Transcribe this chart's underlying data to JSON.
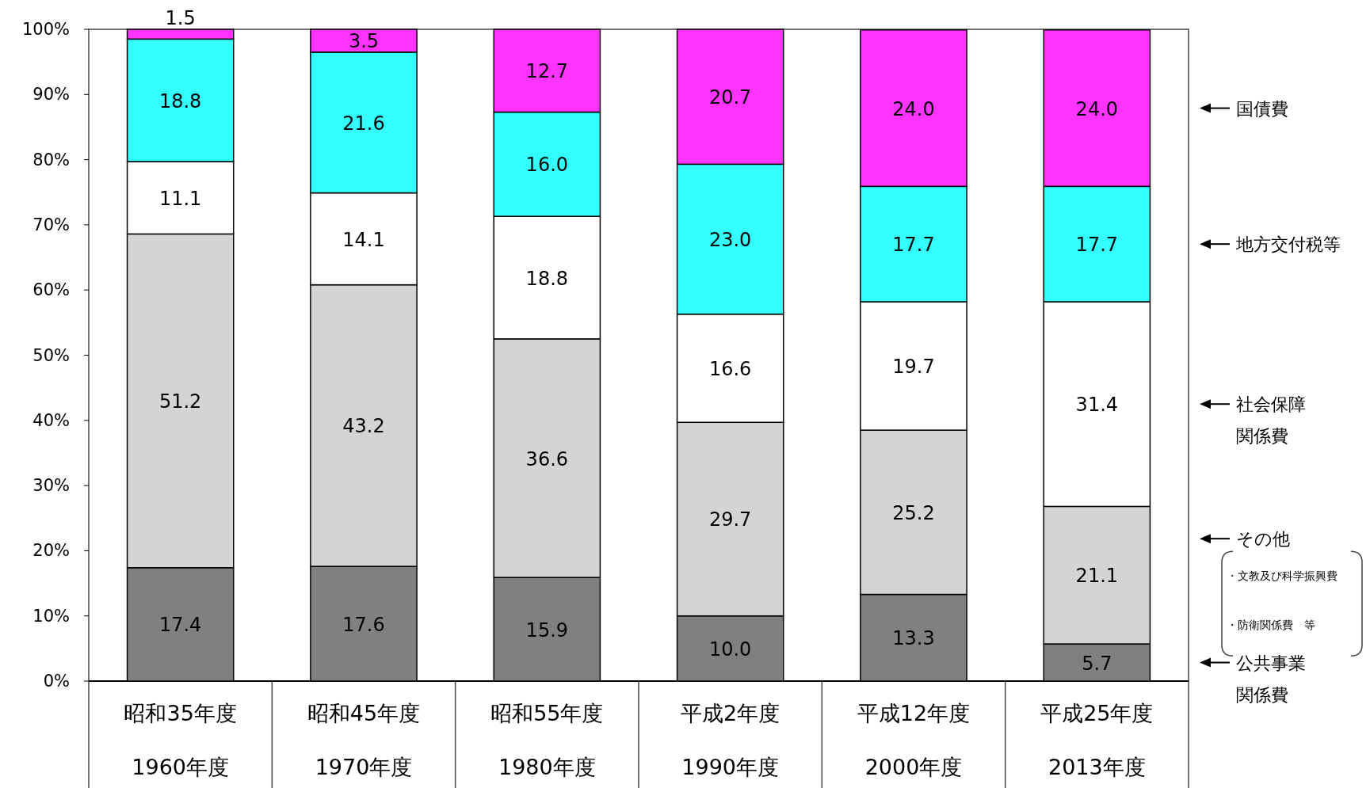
{
  "chart_data": {
    "type": "bar",
    "stacked": true,
    "legend": "right",
    "grid": false,
    "categories": [
      "昭和35年度\n1960年度",
      "昭和45年度\n1970年度",
      "昭和55年度\n1980年度",
      "平成2年度\n1990年度",
      "平成12年度\n2000年度",
      "平成25年度\n2013年度"
    ],
    "ylim": [
      0,
      100
    ],
    "yticks": [
      {
        "value": 0,
        "label": "0%"
      },
      {
        "value": 10,
        "label": "10%"
      },
      {
        "value": 20,
        "label": "20%"
      },
      {
        "value": 30,
        "label": "30%"
      },
      {
        "value": 40,
        "label": "40%"
      },
      {
        "value": 50,
        "label": "50%"
      },
      {
        "value": 60,
        "label": "60%"
      },
      {
        "value": 70,
        "label": "70%"
      },
      {
        "value": 80,
        "label": "80%"
      },
      {
        "value": 90,
        "label": "90%"
      },
      {
        "value": 100,
        "label": "100%"
      }
    ],
    "series": [
      {
        "name": "公共事業関係費",
        "color": "#808080",
        "values": [
          17.4,
          17.6,
          15.9,
          10.0,
          13.3,
          5.7
        ],
        "value_labels": [
          "17.4",
          "17.6",
          "15.9",
          "10.0",
          "13.3",
          "5.7"
        ]
      },
      {
        "name": "その他",
        "color": "#d4d4d4",
        "values": [
          51.2,
          43.2,
          36.6,
          29.7,
          25.2,
          21.1
        ],
        "value_labels": [
          "51.2",
          "43.2",
          "36.6",
          "29.7",
          "25.2",
          "21.1"
        ]
      },
      {
        "name": "社会保障関係費",
        "color": "#ffffff",
        "values": [
          11.1,
          14.1,
          18.8,
          16.6,
          19.7,
          31.4
        ],
        "value_labels": [
          "11.1",
          "14.1",
          "18.8",
          "16.6",
          "19.7",
          "31.4"
        ]
      },
      {
        "name": "地方交付税等",
        "color": "#33ffff",
        "values": [
          18.8,
          21.6,
          16.0,
          23.0,
          17.7,
          17.7
        ],
        "value_labels": [
          "18.8",
          "21.6",
          "16.0",
          "23.0",
          "17.7",
          "17.7"
        ]
      },
      {
        "name": "国債費",
        "color": "#ff33ff",
        "values": [
          1.5,
          3.5,
          12.7,
          20.7,
          24.0,
          24.0
        ],
        "value_labels": [
          "1.5",
          "3.5",
          "12.7",
          "20.7",
          "24.0",
          "24.0"
        ]
      }
    ],
    "annotations": [
      "・文教及び科学振興費",
      "・防衛関係費　等"
    ]
  }
}
